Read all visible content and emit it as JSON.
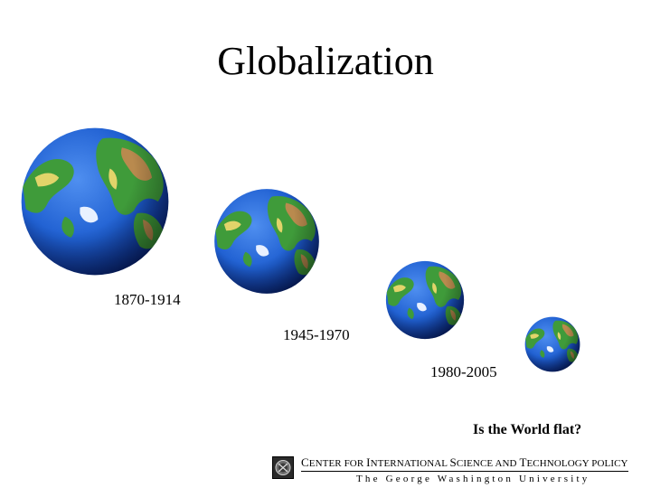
{
  "title": "Globalization",
  "periods": [
    {
      "label": "1870-1914"
    },
    {
      "label": "1945-1970"
    },
    {
      "label": "1980-2005"
    }
  ],
  "question": "Is the World flat?",
  "footer": {
    "center_name": "Center for International Science and Technology Policy",
    "words": [
      {
        "cap": "C",
        "rest": "ENTER "
      },
      {
        "cap": "",
        "rest": "FOR "
      },
      {
        "cap": "I",
        "rest": "NTERNATIONAL "
      },
      {
        "cap": "S",
        "rest": "CIENCE "
      },
      {
        "cap": "",
        "rest": "AND "
      },
      {
        "cap": "T",
        "rest": "ECHNOLOGY "
      },
      {
        "cap": "",
        "rest": "POLICY"
      }
    ],
    "university": "The George Washington University",
    "logo_icon": "gwu-seal-icon"
  },
  "colors": {
    "ocean": "#1f5fd1",
    "ocean_dark": "#0a2a8a",
    "land_green": "#3f9b3a",
    "land_yellow": "#e2d46a",
    "land_brown": "#b98a4e",
    "ice": "#e9f1ff"
  }
}
